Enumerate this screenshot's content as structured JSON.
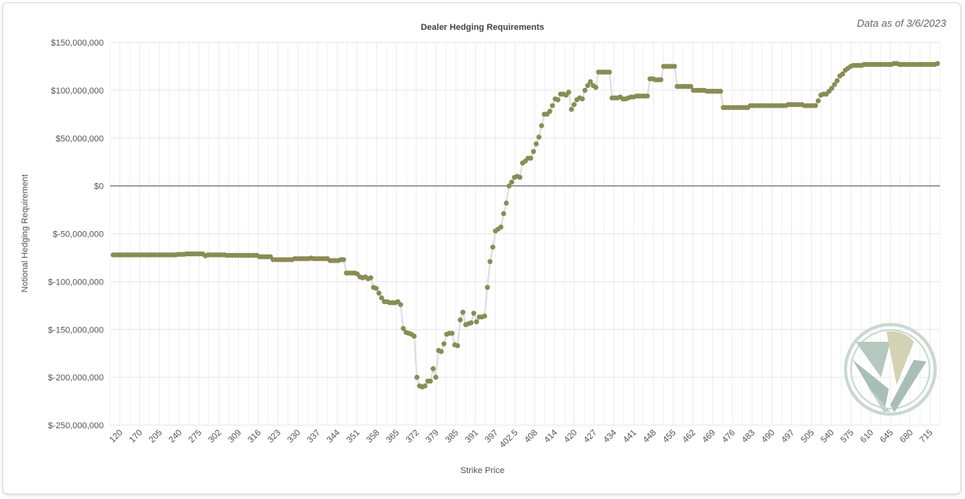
{
  "header": {
    "as_of": "Data as of 3/6/2023"
  },
  "chart_data": {
    "type": "line",
    "title": "Dealer Hedging Requirements",
    "xlabel": "Strike Price",
    "ylabel": "Notional Hedging Requirement",
    "ylim": [
      -250000000,
      150000000
    ],
    "y_ticks": [
      150000000,
      100000000,
      50000000,
      0,
      -50000000,
      -100000000,
      -150000000,
      -200000000,
      -250000000
    ],
    "y_tick_labels": [
      "$150,000,000",
      "$100,000,000",
      "$50,000,000",
      "$0",
      "$-50,000,000",
      "$-100,000,000",
      "$-150,000,000",
      "$-200,000,000",
      "$-250,000,000"
    ],
    "x_tick_labels": [
      "120",
      "170",
      "205",
      "240",
      "275",
      "302",
      "309",
      "316",
      "323",
      "330",
      "337",
      "344",
      "351",
      "358",
      "365",
      "372",
      "379",
      "385",
      "391",
      "397",
      "402.5",
      "408",
      "414",
      "420",
      "427",
      "434",
      "441",
      "448",
      "455",
      "462",
      "469",
      "476",
      "483",
      "490",
      "497",
      "505",
      "540",
      "575",
      "610",
      "645",
      "680",
      "715"
    ],
    "grid": true,
    "line_color": "#dddddd",
    "marker_color": "#8a8c55",
    "zero_line_color": "#555555",
    "series": [
      {
        "values": [
          -72,
          -72,
          -72,
          -72,
          -72,
          -72,
          -72,
          -72,
          -72,
          -72,
          -72,
          -72,
          -72,
          -72,
          -72,
          -72,
          -72,
          -72,
          -72,
          -72,
          -72,
          -72,
          -72,
          -72,
          -71.5,
          -71.5,
          -71.5,
          -71,
          -71,
          -71,
          -71,
          -71,
          -71,
          -71,
          -73,
          -72,
          -72,
          -72,
          -72,
          -72,
          -72,
          -72,
          -72.5,
          -72.5,
          -72.5,
          -72.5,
          -72.5,
          -72.5,
          -72.5,
          -72.5,
          -72.5,
          -72.5,
          -72.5,
          -72.5,
          -74,
          -74,
          -74,
          -74,
          -74,
          -77,
          -77,
          -77,
          -77,
          -77,
          -77,
          -77,
          -77,
          -76,
          -76,
          -76,
          -76,
          -76,
          -76,
          -75.5,
          -76,
          -76,
          -76,
          -76,
          -76,
          -76,
          -78,
          -78,
          -78,
          -78,
          -77,
          -77,
          -91,
          -91,
          -91,
          -91,
          -92,
          -95,
          -96,
          -95,
          -97,
          -96,
          -106,
          -107,
          -112,
          -117,
          -121,
          -121,
          -122,
          -122,
          -122,
          -121,
          -124,
          -149,
          -153,
          -154,
          -155,
          -157,
          -200,
          -209,
          -210,
          -209,
          -204,
          -204,
          -191,
          -200,
          -172,
          -173,
          -165,
          -155,
          -154,
          -154,
          -166,
          -167,
          -140,
          -132,
          -145,
          -144,
          -143,
          -133,
          -142,
          -137,
          -137,
          -136,
          -106,
          -79,
          -64,
          -47,
          -45,
          -43,
          -29,
          -18,
          0,
          4,
          9,
          10,
          9,
          24,
          26,
          29,
          29,
          36,
          44,
          51,
          63,
          75,
          75,
          78,
          84,
          91,
          90,
          96,
          96,
          95,
          98,
          80,
          85,
          90,
          92,
          91,
          100,
          105,
          109,
          105,
          103,
          119,
          119,
          119,
          119,
          119,
          92,
          92,
          92,
          93,
          91,
          91,
          92,
          93,
          93,
          94,
          94,
          94,
          94,
          94,
          112,
          112,
          111,
          111,
          111,
          125,
          125,
          125,
          125,
          125,
          104,
          104,
          104,
          104,
          104,
          104,
          100,
          100,
          100,
          100,
          100,
          99,
          99,
          99,
          99,
          99,
          99,
          82,
          82,
          82,
          82,
          82,
          82,
          82,
          82,
          82,
          82,
          84,
          84,
          84,
          84,
          84,
          84,
          84,
          84,
          84,
          84,
          84,
          84,
          84,
          84,
          85,
          85,
          85,
          85,
          85,
          85,
          84,
          84,
          84,
          84,
          84,
          89,
          95,
          96,
          96,
          99,
          102,
          106,
          110,
          115,
          117,
          121,
          123,
          125,
          126,
          126,
          126,
          126,
          127,
          127,
          127,
          127,
          127,
          127,
          127,
          127,
          127,
          127,
          127,
          128,
          128,
          127,
          127,
          127,
          127,
          127,
          127,
          127,
          127,
          127,
          127,
          127,
          127,
          127,
          127,
          128
        ]
      }
    ]
  },
  "logo": {
    "name": "logo-badge"
  }
}
